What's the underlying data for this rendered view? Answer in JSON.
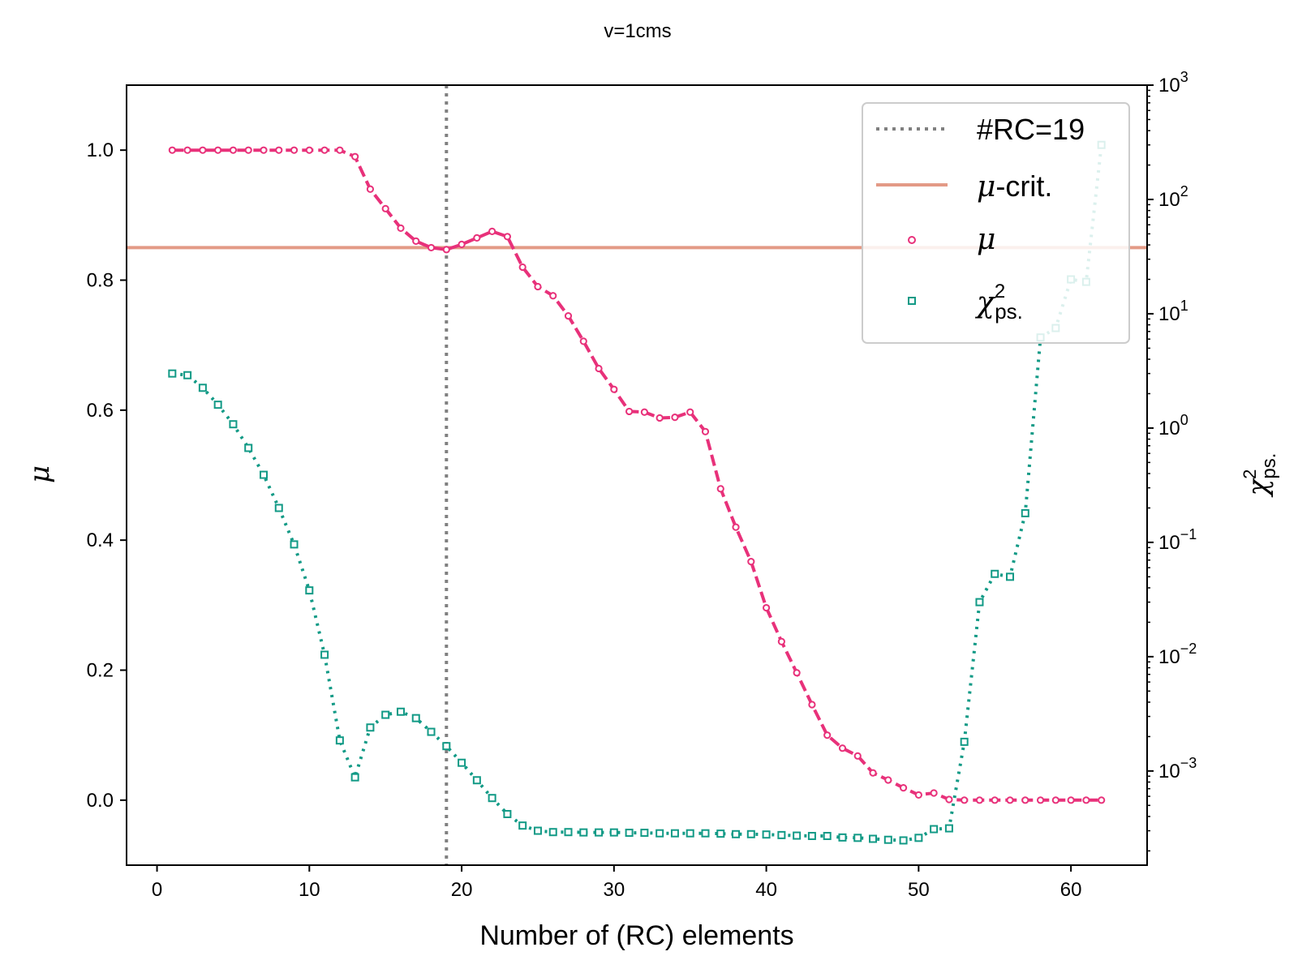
{
  "chart_data": {
    "type": "line",
    "title": "v=1cms",
    "xlabel": "Number of (RC) elements",
    "ylabel_left": "μ",
    "ylabel_right_base": "χ",
    "ylabel_right_sup": "2",
    "ylabel_right_sub": "ps.",
    "xlim": [
      -2,
      65
    ],
    "ylim_left": [
      -0.1,
      1.1
    ],
    "ylim_right": [
      0.00015,
      1000
    ],
    "right_axis_scale": "log",
    "x_ticks": [
      0,
      10,
      20,
      30,
      40,
      50,
      60
    ],
    "x_tick_labels": [
      "0",
      "10",
      "20",
      "30",
      "40",
      "50",
      "60"
    ],
    "y_left_ticks": [
      0.0,
      0.2,
      0.4,
      0.6,
      0.8,
      1.0
    ],
    "y_left_tick_labels": [
      "0.0",
      "0.2",
      "0.4",
      "0.6",
      "0.8",
      "1.0"
    ],
    "y_right_ticks": [
      0.001,
      0.01,
      0.1,
      1,
      10,
      100,
      1000
    ],
    "y_right_tick_labels": [
      {
        "base": "10",
        "exp": "−3"
      },
      {
        "base": "10",
        "exp": "−2"
      },
      {
        "base": "10",
        "exp": "−1"
      },
      {
        "base": "10",
        "exp": "0"
      },
      {
        "base": "10",
        "exp": "1"
      },
      {
        "base": "10",
        "exp": "2"
      },
      {
        "base": "10",
        "exp": "3"
      }
    ],
    "grid": false,
    "legend_position": "top-right",
    "vline": {
      "x": 19,
      "label": "#RC=19",
      "color": "#808080"
    },
    "hline": {
      "y": 0.85,
      "label_math": "μ",
      "label_text": "-crit.",
      "color": "#e39a86"
    },
    "series": [
      {
        "name": "μ",
        "axis": "left",
        "color": "#e8317a",
        "marker": "circle",
        "line": "dashed",
        "x": [
          1,
          2,
          3,
          4,
          5,
          6,
          7,
          8,
          9,
          10,
          11,
          12,
          13,
          14,
          15,
          16,
          17,
          18,
          19,
          20,
          21,
          22,
          23,
          24,
          25,
          26,
          27,
          28,
          29,
          30,
          31,
          32,
          33,
          34,
          35,
          36,
          37,
          38,
          39,
          40,
          41,
          42,
          43,
          44,
          45,
          46,
          47,
          48,
          49,
          50,
          51,
          52,
          53,
          54,
          55,
          56,
          57,
          58,
          59,
          60,
          61,
          62
        ],
        "y": [
          1.0,
          1.0,
          1.0,
          1.0,
          1.0,
          1.0,
          1.0,
          1.0,
          1.0,
          1.0,
          1.0,
          1.0,
          0.99,
          0.94,
          0.91,
          0.88,
          0.86,
          0.85,
          0.847,
          0.855,
          0.865,
          0.875,
          0.867,
          0.82,
          0.79,
          0.776,
          0.745,
          0.706,
          0.664,
          0.632,
          0.598,
          0.597,
          0.588,
          0.589,
          0.597,
          0.567,
          0.479,
          0.42,
          0.367,
          0.296,
          0.244,
          0.196,
          0.147,
          0.1,
          0.08,
          0.068,
          0.042,
          0.031,
          0.019,
          0.008,
          0.011,
          0.001,
          0.0,
          0.0,
          0.0,
          0.0,
          0.0,
          0.0,
          0.0,
          0.0,
          0.0,
          0.0
        ]
      },
      {
        "name_base": "χ",
        "name_sup": "2",
        "name_sub": "ps.",
        "axis": "right",
        "color": "#129a86",
        "marker": "square",
        "line": "dotted",
        "x": [
          1,
          2,
          3,
          4,
          5,
          6,
          7,
          8,
          9,
          10,
          11,
          12,
          13,
          14,
          15,
          16,
          17,
          18,
          19,
          20,
          21,
          22,
          23,
          24,
          25,
          26,
          27,
          28,
          29,
          30,
          31,
          32,
          33,
          34,
          35,
          36,
          37,
          38,
          39,
          40,
          41,
          42,
          43,
          44,
          45,
          46,
          47,
          48,
          49,
          50,
          51,
          52,
          53,
          54,
          55,
          56,
          57,
          58,
          59,
          60,
          61,
          62
        ],
        "y": [
          3.0,
          2.9,
          2.25,
          1.6,
          1.08,
          0.67,
          0.39,
          0.2,
          0.096,
          0.038,
          0.0104,
          0.00185,
          0.00088,
          0.0024,
          0.0031,
          0.0033,
          0.0029,
          0.0022,
          0.00165,
          0.00118,
          0.00083,
          0.00058,
          0.00042,
          0.000333,
          0.0003,
          0.000292,
          0.000292,
          0.00029,
          0.00029,
          0.00029,
          0.000288,
          0.000288,
          0.000285,
          0.000285,
          0.000285,
          0.000285,
          0.000283,
          0.00028,
          0.00028,
          0.000278,
          0.000275,
          0.000272,
          0.00027,
          0.00027,
          0.000262,
          0.00026,
          0.000255,
          0.00025,
          0.000247,
          0.00026,
          0.00031,
          0.000315,
          0.0018,
          0.03,
          0.053,
          0.05,
          0.18,
          6.2,
          7.5,
          20.0,
          19.0,
          300.0
        ]
      }
    ]
  }
}
